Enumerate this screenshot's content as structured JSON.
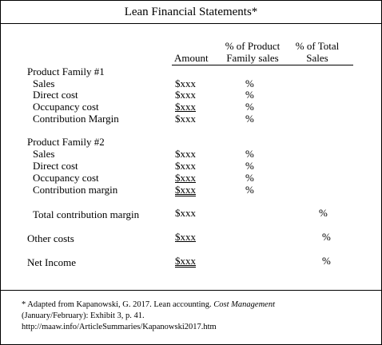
{
  "title": "Lean Financial Statements*",
  "headers": {
    "amount": "Amount",
    "pct_product_line1": "% of Product",
    "pct_product_line2": "Family sales",
    "pct_total_line1": "% of Total",
    "pct_total_line2": "Sales"
  },
  "family1": {
    "name": "Product Family #1",
    "rows": [
      {
        "label": "Sales",
        "amount": "$xxx",
        "pct": "%"
      },
      {
        "label": "Direct cost",
        "amount": "$xxx",
        "pct": "%"
      },
      {
        "label": "Occupancy cost",
        "amount": "$xxx",
        "pct": "%"
      },
      {
        "label": "Contribution Margin",
        "amount": "$xxx",
        "pct": "%"
      }
    ]
  },
  "family2": {
    "name": "Product Family #2",
    "rows": [
      {
        "label": "Sales",
        "amount": "$xxx",
        "pct": "%"
      },
      {
        "label": "Direct cost",
        "amount": "$xxx",
        "pct": "%"
      },
      {
        "label": "Occupancy cost",
        "amount": "$xxx",
        "pct": "%"
      },
      {
        "label": "Contribution margin",
        "amount": "$xxx",
        "pct": "%"
      }
    ]
  },
  "totals": [
    {
      "label": "Total contribution margin",
      "amount": "$xxx",
      "pct": "%"
    },
    {
      "label": "Other costs",
      "amount": "$xxx",
      "pct": "%"
    },
    {
      "label": "Net Income",
      "amount": "$xxx",
      "pct": "%"
    }
  ],
  "footnote": {
    "line1_prefix": "* Adapted from Kapanowski, G. 2017. Lean accounting. ",
    "line1_journal": "Cost Management",
    "line2": "(January/February): Exhibit 3, p. 41.",
    "line3": "http://maaw.info/ArticleSummaries/Kapanowski2017.htm"
  }
}
